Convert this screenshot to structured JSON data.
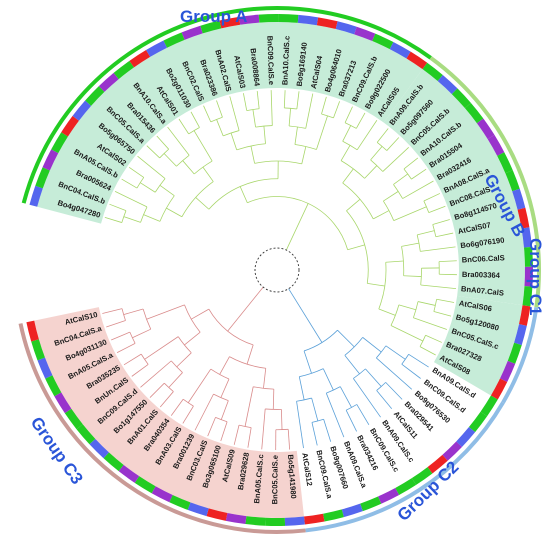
{
  "title": "",
  "colors": {
    "group_a_branch": "#d98b8b",
    "group_b_branch": "#5aa0d8",
    "group_c_branch": "#a8d66a",
    "group_label": "#2a55d8",
    "group_a_bg": "#f5d3cf",
    "group_b_bg": "#ffffff",
    "group_c_bg": "#c6ecd8",
    "group_a_ring": "#c99a96",
    "group_b_ring": "#8fbde6",
    "group_c1_ring": "#8fbde6",
    "group_c2_ring": "#a9dc82",
    "group_c3_ring": "#22cc22",
    "species_arabidopsis": "#ee2222",
    "species_brassica_rapa": "#9933cc",
    "species_brassica_oleracea": "#5566ee",
    "species_brassica_napus": "#22cc22"
  },
  "groups": [
    {
      "id": "A",
      "label": "Group A"
    },
    {
      "id": "B",
      "label": "Group B"
    },
    {
      "id": "C1",
      "label": "Group C1"
    },
    {
      "id": "C2",
      "label": "Group C2"
    },
    {
      "id": "C3",
      "label": "Group C3"
    }
  ],
  "leaves": [
    {
      "label": "Bo4g047280",
      "group": "C3"
    },
    {
      "label": "BnC04.CalS.b",
      "group": "C3"
    },
    {
      "label": "Bra005624",
      "group": "C3"
    },
    {
      "label": "BnA05.CalS.b",
      "group": "C3"
    },
    {
      "label": "AtCalS02",
      "group": "C3"
    },
    {
      "label": "Bo5g065750",
      "group": "C3"
    },
    {
      "label": "BnC05.CalS.a",
      "group": "C3"
    },
    {
      "label": "Bra015436",
      "group": "C3"
    },
    {
      "label": "BnA10.CalS.a",
      "group": "C3"
    },
    {
      "label": "AtCalS01",
      "group": "C3"
    },
    {
      "label": "Bo2g011030",
      "group": "C3"
    },
    {
      "label": "BnC02.CalS",
      "group": "C3"
    },
    {
      "label": "Bra023386",
      "group": "C3"
    },
    {
      "label": "BnA02.CalS",
      "group": "C3"
    },
    {
      "label": "AtCalS03",
      "group": "C3"
    },
    {
      "label": "Bra008864",
      "group": "C3"
    },
    {
      "label": "BnC09.CalS.e",
      "group": "C3"
    },
    {
      "label": "BnA10.CalS.c",
      "group": "C3"
    },
    {
      "label": "Bo9g169140",
      "group": "C3"
    },
    {
      "label": "AtCalS04",
      "group": "C3"
    },
    {
      "label": "Bo4g064010",
      "group": "C3"
    },
    {
      "label": "Bra037213",
      "group": "C3"
    },
    {
      "label": "BnC09.CalS.b",
      "group": "C3"
    },
    {
      "label": "Bo9g022500",
      "group": "C3"
    },
    {
      "label": "AtCalS05",
      "group": "C3"
    },
    {
      "label": "BnA09.CalS.b",
      "group": "C2"
    },
    {
      "label": "Bo5g097560",
      "group": "C2"
    },
    {
      "label": "BnC05.CalS.b",
      "group": "C2"
    },
    {
      "label": "BnA10.CalS.b",
      "group": "C2"
    },
    {
      "label": "Bra015504",
      "group": "C2"
    },
    {
      "label": "Bra032416",
      "group": "C2"
    },
    {
      "label": "BnA08.CalS.a",
      "group": "C2"
    },
    {
      "label": "BnC08.CalS",
      "group": "C2"
    },
    {
      "label": "Bo8g114570",
      "group": "C2"
    },
    {
      "label": "AtCalS07",
      "group": "C2"
    },
    {
      "label": "Bo6g076190",
      "group": "C2"
    },
    {
      "label": "BnC06.CalS",
      "group": "C2"
    },
    {
      "label": "Bra003364",
      "group": "C2"
    },
    {
      "label": "BnA07.CalS",
      "group": "C2"
    },
    {
      "label": "AtCalS06",
      "group": "C1"
    },
    {
      "label": "Bo5g120080",
      "group": "C1"
    },
    {
      "label": "BnC05.CalS.c",
      "group": "C1"
    },
    {
      "label": "Bra027328",
      "group": "C1"
    },
    {
      "label": "AtCalS08",
      "group": "C1"
    },
    {
      "label": "BnA09.CalS.d",
      "group": "B"
    },
    {
      "label": "BnC09.CalS.d",
      "group": "B"
    },
    {
      "label": "Bo9g076530",
      "group": "B"
    },
    {
      "label": "Bra029541",
      "group": "B"
    },
    {
      "label": "AtCalS11",
      "group": "B"
    },
    {
      "label": "BnA09.CalS.c",
      "group": "B"
    },
    {
      "label": "BnC09.CalS.c",
      "group": "B"
    },
    {
      "label": "Bra034216",
      "group": "B"
    },
    {
      "label": "BnA09.CalS.a",
      "group": "B"
    },
    {
      "label": "Bo9g007660",
      "group": "B"
    },
    {
      "label": "BnC09.CalS.a",
      "group": "B"
    },
    {
      "label": "AtCalS12",
      "group": "B"
    },
    {
      "label": "Bo5g141980",
      "group": "A"
    },
    {
      "label": "BnC05.CalS.e",
      "group": "A"
    },
    {
      "label": "BnA05.CalS.c",
      "group": "A"
    },
    {
      "label": "Bra029628",
      "group": "A"
    },
    {
      "label": "AtCalS09",
      "group": "A"
    },
    {
      "label": "Bo3g065100",
      "group": "A"
    },
    {
      "label": "BnC03.CalS",
      "group": "A"
    },
    {
      "label": "Bra001239",
      "group": "A"
    },
    {
      "label": "BnA03.CalS",
      "group": "A"
    },
    {
      "label": "Bra040354",
      "group": "A"
    },
    {
      "label": "BnA01.CalS",
      "group": "A"
    },
    {
      "label": "Bo1g147550",
      "group": "A"
    },
    {
      "label": "BnC09.CalS.d",
      "group": "A"
    },
    {
      "label": "BnUn.CalS",
      "group": "A"
    },
    {
      "label": "Bra035235",
      "group": "A"
    },
    {
      "label": "BnA05.CalS.a",
      "group": "A"
    },
    {
      "label": "Bo4g031130",
      "group": "A"
    },
    {
      "label": "BnC04.CalS.a",
      "group": "A"
    },
    {
      "label": "AtCalS10",
      "group": "A"
    }
  ]
}
